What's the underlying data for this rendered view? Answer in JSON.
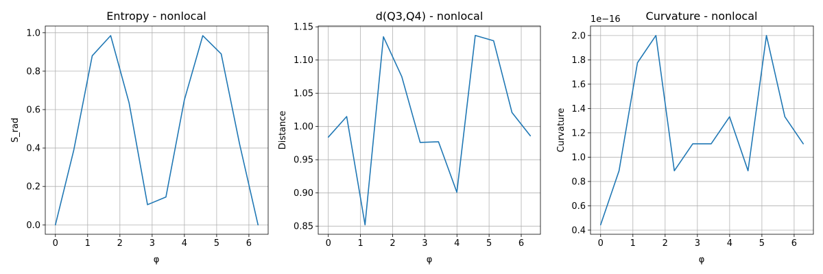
{
  "chart_data": [
    {
      "type": "line",
      "title": "Entropy - nonlocal",
      "xlabel": "φ",
      "ylabel": "S_rad",
      "x": [
        0,
        0.571,
        1.142,
        1.714,
        2.285,
        2.856,
        3.427,
        3.998,
        4.57,
        5.141,
        5.712,
        6.283
      ],
      "series": [
        {
          "values": [
            0.0,
            0.39,
            0.88,
            0.985,
            0.635,
            0.105,
            0.145,
            0.65,
            0.985,
            0.89,
            0.42,
            0.0
          ]
        }
      ],
      "xlim": [
        -0.314,
        6.597
      ],
      "ylim": [
        -0.049,
        1.035
      ],
      "xticks": [
        0,
        1,
        2,
        3,
        4,
        5,
        6
      ],
      "xtick_labels": [
        "0",
        "1",
        "2",
        "3",
        "4",
        "5",
        "6"
      ],
      "yticks": [
        0.0,
        0.2,
        0.4,
        0.6,
        0.8,
        1.0
      ],
      "ytick_labels": [
        "0.0",
        "0.2",
        "0.4",
        "0.6",
        "0.8",
        "1.0"
      ],
      "offset_label": "",
      "grid": true,
      "color": "#1f77b4"
    },
    {
      "type": "line",
      "title": "d(Q3,Q4) - nonlocal",
      "xlabel": "φ",
      "ylabel": "Distance",
      "x": [
        0,
        0.571,
        1.142,
        1.714,
        2.285,
        2.856,
        3.427,
        3.998,
        4.57,
        5.141,
        5.712,
        6.283
      ],
      "series": [
        {
          "values": [
            0.984,
            1.015,
            0.852,
            1.135,
            1.075,
            0.976,
            0.977,
            0.901,
            1.137,
            1.129,
            1.021,
            0.986
          ]
        }
      ],
      "xlim": [
        -0.314,
        6.597
      ],
      "ylim": [
        0.8378,
        1.1512
      ],
      "xticks": [
        0,
        1,
        2,
        3,
        4,
        5,
        6
      ],
      "xtick_labels": [
        "0",
        "1",
        "2",
        "3",
        "4",
        "5",
        "6"
      ],
      "yticks": [
        0.85,
        0.9,
        0.95,
        1.0,
        1.05,
        1.1,
        1.15
      ],
      "ytick_labels": [
        "0.85",
        "0.90",
        "0.95",
        "1.00",
        "1.05",
        "1.10",
        "1.15"
      ],
      "offset_label": "",
      "grid": true,
      "color": "#1f77b4"
    },
    {
      "type": "line",
      "title": "Curvature - nonlocal",
      "xlabel": "φ",
      "ylabel": "Curvature",
      "x": [
        0,
        0.571,
        1.142,
        1.714,
        2.285,
        2.856,
        3.427,
        3.998,
        4.57,
        5.141,
        5.712,
        6.283
      ],
      "series": [
        {
          "values": [
            0.444,
            0.888,
            1.776,
            2.0,
            0.888,
            1.11,
            1.11,
            1.332,
            0.888,
            2.0,
            1.332,
            1.11
          ]
        }
      ],
      "xlim": [
        -0.314,
        6.597
      ],
      "ylim": [
        0.366,
        2.078
      ],
      "xticks": [
        0,
        1,
        2,
        3,
        4,
        5,
        6
      ],
      "xtick_labels": [
        "0",
        "1",
        "2",
        "3",
        "4",
        "5",
        "6"
      ],
      "yticks": [
        0.4,
        0.6,
        0.8,
        1.0,
        1.2,
        1.4,
        1.6,
        1.8,
        2.0
      ],
      "ytick_labels": [
        "0.4",
        "0.6",
        "0.8",
        "1.0",
        "1.2",
        "1.4",
        "1.6",
        "1.8",
        "2.0"
      ],
      "offset_label": "1e−16",
      "grid": true,
      "color": "#1f77b4"
    }
  ]
}
